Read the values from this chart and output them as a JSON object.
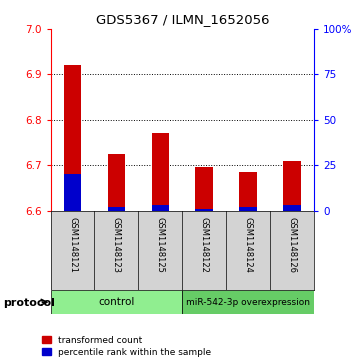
{
  "title": "GDS5367 / ILMN_1652056",
  "samples": [
    "GSM1148121",
    "GSM1148123",
    "GSM1148125",
    "GSM1148122",
    "GSM1148124",
    "GSM1148126"
  ],
  "transformed_counts": [
    6.92,
    6.725,
    6.77,
    6.695,
    6.685,
    6.71
  ],
  "percentile_ranks": [
    20,
    2,
    3,
    1,
    2,
    3
  ],
  "ylim_left": [
    6.6,
    7.0
  ],
  "ylim_right": [
    0,
    100
  ],
  "yticks_left": [
    6.6,
    6.7,
    6.8,
    6.9,
    7.0
  ],
  "yticks_right": [
    0,
    25,
    50,
    75,
    100
  ],
  "ytick_right_labels": [
    "0",
    "25",
    "50",
    "75",
    "100%"
  ],
  "base_value": 6.6,
  "bar_color_red": "#cc0000",
  "bar_color_blue": "#0000cc",
  "bg_plot": "#ffffff",
  "bg_sample": "#d3d3d3",
  "bg_control": "#90ee90",
  "bg_mir": "#66cc66",
  "legend_red": "transformed count",
  "legend_blue": "percentile rank within the sample",
  "protocol_label": "protocol",
  "bar_width": 0.4
}
